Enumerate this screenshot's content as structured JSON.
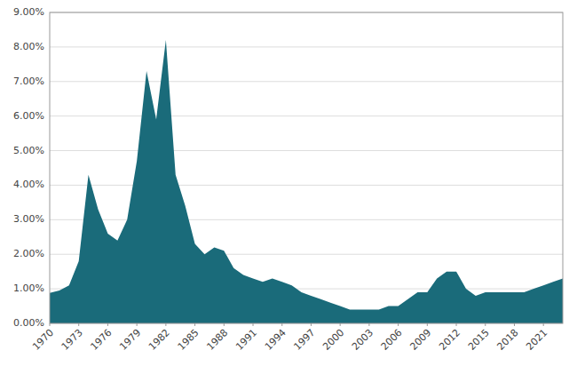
{
  "chart_data": {
    "type": "area",
    "x": [
      1970,
      1971,
      1972,
      1973,
      1974,
      1975,
      1976,
      1977,
      1978,
      1979,
      1980,
      1981,
      1982,
      1983,
      1984,
      1985,
      1986,
      1987,
      1988,
      1989,
      1990,
      1991,
      1992,
      1993,
      1994,
      1995,
      1996,
      1997,
      1998,
      1999,
      2000,
      2001,
      2002,
      2003,
      2004,
      2005,
      2006,
      2007,
      2008,
      2009,
      2010,
      2011,
      2012,
      2013,
      2014,
      2015,
      2016,
      2017,
      2018,
      2019,
      2020,
      2021,
      2022,
      2023
    ],
    "values": [
      0.0088,
      0.0095,
      0.011,
      0.018,
      0.043,
      0.033,
      0.026,
      0.024,
      0.03,
      0.047,
      0.073,
      0.059,
      0.082,
      0.043,
      0.034,
      0.023,
      0.02,
      0.022,
      0.021,
      0.016,
      0.014,
      0.013,
      0.012,
      0.013,
      0.012,
      0.011,
      0.009,
      0.008,
      0.007,
      0.006,
      0.005,
      0.004,
      0.004,
      0.004,
      0.004,
      0.005,
      0.005,
      0.007,
      0.009,
      0.009,
      0.013,
      0.015,
      0.015,
      0.01,
      0.008,
      0.009,
      0.009,
      0.009,
      0.009,
      0.009,
      0.01,
      0.011,
      0.012,
      0.013
    ],
    "color": "#1a6b7a",
    "xlim": [
      1970,
      2023
    ],
    "ylim": [
      0.0,
      0.09
    ],
    "xticks": [
      1970,
      1973,
      1976,
      1979,
      1982,
      1985,
      1988,
      1991,
      1994,
      1997,
      2000,
      2003,
      2006,
      2009,
      2012,
      2015,
      2018,
      2021
    ],
    "yticks": [
      {
        "value": 0.0,
        "label": "0.00%"
      },
      {
        "value": 0.01,
        "label": "1.00%"
      },
      {
        "value": 0.02,
        "label": "2.00%"
      },
      {
        "value": 0.03,
        "label": "3.00%"
      },
      {
        "value": 0.04,
        "label": "4.00%"
      },
      {
        "value": 0.05,
        "label": "5.00%"
      },
      {
        "value": 0.06,
        "label": "6.00%"
      },
      {
        "value": 0.07,
        "label": "7.00%"
      },
      {
        "value": 0.08,
        "label": "8.00%"
      },
      {
        "value": 0.09,
        "label": "9.00%"
      }
    ],
    "grid": true
  }
}
